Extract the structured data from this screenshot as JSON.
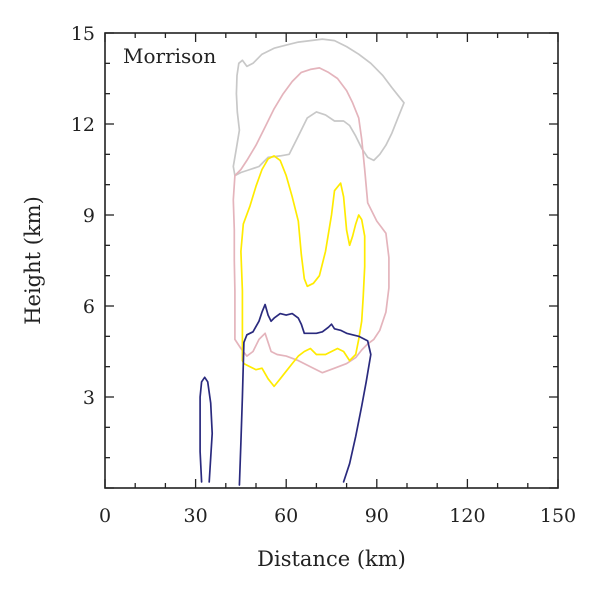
{
  "chart_data": {
    "type": "line",
    "title": "",
    "panel_label": "Morrison",
    "xlabel": "Distance (km)",
    "ylabel": "Height (km)",
    "xlim": [
      0,
      150
    ],
    "ylim": [
      0,
      15
    ],
    "xticks": [
      0,
      30,
      60,
      90,
      120,
      150
    ],
    "yticks": [
      3,
      6,
      9,
      12,
      15
    ],
    "grid": false,
    "series": [
      {
        "color": "#c8c8c8",
        "points": [
          [
            43,
            10.3
          ],
          [
            42.5,
            10.6
          ],
          [
            43.5,
            11.2
          ],
          [
            44.5,
            11.8
          ],
          [
            43.8,
            12.4
          ],
          [
            43.5,
            13.0
          ],
          [
            43.7,
            13.6
          ],
          [
            44.3,
            14.0
          ],
          [
            45.5,
            14.1
          ],
          [
            47,
            13.9
          ],
          [
            49,
            14.0
          ],
          [
            52,
            14.3
          ],
          [
            56,
            14.5
          ],
          [
            60,
            14.6
          ],
          [
            64,
            14.7
          ],
          [
            68,
            14.75
          ],
          [
            72,
            14.8
          ],
          [
            76,
            14.75
          ],
          [
            80,
            14.55
          ],
          [
            84,
            14.3
          ],
          [
            88,
            14.0
          ],
          [
            92,
            13.6
          ],
          [
            95,
            13.2
          ],
          [
            97,
            12.95
          ],
          [
            99,
            12.7
          ],
          [
            97,
            12.2
          ],
          [
            95,
            11.7
          ],
          [
            93,
            11.3
          ],
          [
            91,
            11.0
          ],
          [
            89,
            10.8
          ],
          [
            87,
            10.9
          ],
          [
            85,
            11.2
          ],
          [
            83,
            11.6
          ],
          [
            81,
            11.95
          ],
          [
            79,
            12.1
          ],
          [
            76,
            12.1
          ],
          [
            73,
            12.3
          ],
          [
            70,
            12.4
          ],
          [
            67,
            12.2
          ],
          [
            64,
            11.6
          ],
          [
            61,
            11.0
          ],
          [
            58,
            10.95
          ],
          [
            54,
            10.9
          ],
          [
            51,
            10.6
          ],
          [
            48,
            10.5
          ],
          [
            45,
            10.4
          ],
          [
            43,
            10.3
          ]
        ]
      },
      {
        "color": "#e4b4bc",
        "points": [
          [
            43,
            4.9
          ],
          [
            43,
            5.5
          ],
          [
            43,
            6.5
          ],
          [
            42.8,
            7.5
          ],
          [
            42.8,
            8.5
          ],
          [
            42.5,
            9.5
          ],
          [
            43,
            10.3
          ],
          [
            45,
            10.5
          ],
          [
            47,
            10.8
          ],
          [
            50,
            11.3
          ],
          [
            53,
            11.9
          ],
          [
            56,
            12.5
          ],
          [
            59,
            13.0
          ],
          [
            62,
            13.4
          ],
          [
            65,
            13.7
          ],
          [
            68,
            13.8
          ],
          [
            71,
            13.85
          ],
          [
            74,
            13.7
          ],
          [
            77,
            13.5
          ],
          [
            80,
            13.1
          ],
          [
            82,
            12.7
          ],
          [
            84,
            12.2
          ],
          [
            85,
            11.5
          ],
          [
            86,
            10.5
          ],
          [
            87,
            9.4
          ],
          [
            90,
            8.8
          ],
          [
            93,
            8.4
          ],
          [
            94,
            7.6
          ],
          [
            94,
            6.6
          ],
          [
            93,
            5.8
          ],
          [
            91,
            5.2
          ],
          [
            89,
            4.9
          ],
          [
            87,
            4.75
          ],
          [
            85,
            4.55
          ],
          [
            83,
            4.3
          ],
          [
            80,
            4.1
          ],
          [
            76,
            3.95
          ],
          [
            72,
            3.8
          ],
          [
            68,
            4.0
          ],
          [
            64,
            4.2
          ],
          [
            60,
            4.35
          ],
          [
            57,
            4.4
          ],
          [
            55,
            4.5
          ],
          [
            53,
            5.1
          ],
          [
            51,
            4.9
          ],
          [
            49,
            4.5
          ],
          [
            47,
            4.35
          ],
          [
            45,
            4.6
          ],
          [
            43,
            4.9
          ]
        ]
      },
      {
        "color": "#ffeb00",
        "points": [
          [
            45.5,
            4.2
          ],
          [
            45.5,
            5.2
          ],
          [
            45.5,
            6.5
          ],
          [
            45,
            7.8
          ],
          [
            45.8,
            8.7
          ],
          [
            48,
            9.3
          ],
          [
            50,
            9.95
          ],
          [
            52,
            10.5
          ],
          [
            54,
            10.85
          ],
          [
            56,
            10.95
          ],
          [
            58,
            10.8
          ],
          [
            60,
            10.3
          ],
          [
            62,
            9.6
          ],
          [
            64,
            8.8
          ],
          [
            65,
            7.7
          ],
          [
            66,
            6.9
          ],
          [
            67,
            6.65
          ],
          [
            69,
            6.75
          ],
          [
            71,
            7.0
          ],
          [
            73,
            7.8
          ],
          [
            75,
            9.0
          ],
          [
            76,
            9.8
          ],
          [
            78,
            10.05
          ],
          [
            79,
            9.6
          ],
          [
            80,
            8.5
          ],
          [
            81,
            8.0
          ],
          [
            82,
            8.3
          ],
          [
            83,
            8.7
          ],
          [
            84,
            9.0
          ],
          [
            85,
            8.85
          ],
          [
            86,
            8.3
          ],
          [
            86,
            7.3
          ],
          [
            85.5,
            6.3
          ],
          [
            85,
            5.5
          ],
          [
            84,
            4.9
          ],
          [
            83,
            4.4
          ],
          [
            81,
            4.2
          ],
          [
            79,
            4.5
          ],
          [
            77,
            4.6
          ],
          [
            75,
            4.5
          ],
          [
            73,
            4.4
          ],
          [
            70,
            4.4
          ],
          [
            68,
            4.6
          ],
          [
            66,
            4.5
          ],
          [
            64,
            4.35
          ],
          [
            62,
            4.1
          ],
          [
            60,
            3.85
          ],
          [
            58,
            3.6
          ],
          [
            56,
            3.35
          ],
          [
            54,
            3.6
          ],
          [
            52,
            3.95
          ],
          [
            50,
            3.9
          ],
          [
            48,
            4.0
          ],
          [
            46,
            4.1
          ],
          [
            45.5,
            4.2
          ]
        ]
      },
      {
        "color": "#2a2a7e",
        "points": [
          [
            44.5,
            0.1
          ],
          [
            45,
            1.5
          ],
          [
            45.5,
            3.0
          ],
          [
            46,
            4.8
          ],
          [
            47,
            5.05
          ],
          [
            49,
            5.15
          ],
          [
            51,
            5.5
          ],
          [
            52,
            5.8
          ],
          [
            53,
            6.05
          ],
          [
            54,
            5.7
          ],
          [
            55,
            5.5
          ],
          [
            56,
            5.6
          ],
          [
            58,
            5.75
          ],
          [
            60,
            5.7
          ],
          [
            62,
            5.75
          ],
          [
            64,
            5.6
          ],
          [
            65,
            5.4
          ],
          [
            66,
            5.1
          ],
          [
            68,
            5.1
          ],
          [
            70,
            5.1
          ],
          [
            72,
            5.15
          ],
          [
            74,
            5.3
          ],
          [
            75,
            5.4
          ],
          [
            76,
            5.25
          ],
          [
            78,
            5.2
          ],
          [
            80,
            5.1
          ],
          [
            82,
            5.05
          ],
          [
            84,
            5.0
          ],
          [
            87,
            4.85
          ],
          [
            88,
            4.4
          ],
          [
            86.5,
            3.5
          ],
          [
            85,
            2.7
          ],
          [
            83,
            1.7
          ],
          [
            81,
            0.8
          ],
          [
            79,
            0.2
          ]
        ]
      },
      {
        "color": "#2a2a7e",
        "points": [
          [
            32,
            0.2
          ],
          [
            31.5,
            1.2
          ],
          [
            31.5,
            2.2
          ],
          [
            31.5,
            3.0
          ],
          [
            32,
            3.5
          ],
          [
            33,
            3.65
          ],
          [
            34,
            3.5
          ],
          [
            35,
            2.8
          ],
          [
            35.5,
            1.8
          ],
          [
            35,
            1.0
          ],
          [
            34.5,
            0.2
          ]
        ]
      }
    ]
  }
}
